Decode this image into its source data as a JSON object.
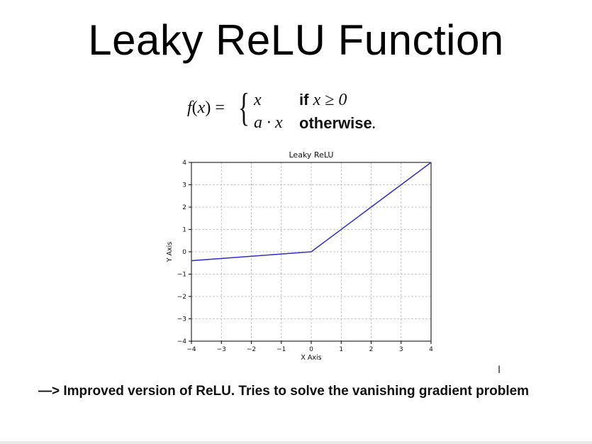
{
  "slide": {
    "title": "Leaky ReLU Function",
    "footer": "—> Improved version of ReLU. Tries to solve the vanishing gradient problem"
  },
  "formula": {
    "lhs_f": "f",
    "lhs_open": "(",
    "lhs_x": "x",
    "lhs_close": ") =",
    "case1_expr": "x",
    "case1_cond_word": "if",
    "case1_cond_math": "x ≥ 0",
    "case2_expr": "a · x",
    "case2_cond_word": "otherwise",
    "case2_cond_punct": "."
  },
  "chart_data": {
    "type": "line",
    "title": "Leaky ReLU",
    "xlabel": "X Axis",
    "ylabel": "Y Axis",
    "xlim": [
      -4,
      4
    ],
    "ylim": [
      -4,
      4
    ],
    "xticks": [
      -4,
      -3,
      -2,
      -1,
      0,
      1,
      2,
      3,
      4
    ],
    "yticks": [
      -4,
      -3,
      -2,
      -1,
      0,
      1,
      2,
      3,
      4
    ],
    "grid": true,
    "grid_style": "dashed",
    "series": [
      {
        "color": "#3535c8",
        "x": [
          -4,
          0,
          4
        ],
        "y": [
          -0.4,
          0,
          4
        ]
      }
    ]
  },
  "icons": {
    "cursor": "text-cursor-icon"
  }
}
